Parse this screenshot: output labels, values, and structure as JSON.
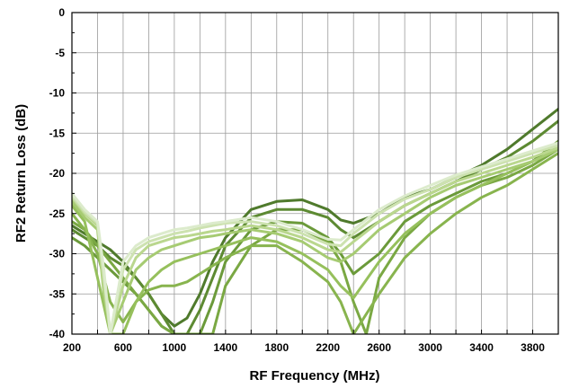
{
  "chart_data": {
    "type": "line",
    "title": "",
    "xlabel": "RF Frequency (MHz)",
    "ylabel": "RF2 Return Loss (dB)",
    "xlim": [
      200,
      4000
    ],
    "ylim": [
      -40,
      0
    ],
    "xticks": [
      200,
      600,
      1000,
      1400,
      1800,
      2200,
      2600,
      3000,
      3400,
      3800
    ],
    "yticks": [
      0,
      -5,
      -10,
      -15,
      -20,
      -25,
      -30,
      -35,
      -40
    ],
    "grid": true,
    "legend": "none",
    "colors": [
      "#4f7a2c",
      "#5d8a32",
      "#6b9a3a",
      "#7aa843",
      "#88b44e",
      "#96c05c",
      "#a6cb72",
      "#bad78e",
      "#cde2b0",
      "#dcebcc"
    ],
    "series": [
      {
        "x": [
          200,
          300,
          400,
          500,
          600,
          700,
          800,
          900,
          1000,
          1100,
          1200,
          1300,
          1400,
          1600,
          1800,
          2000,
          2200,
          2300,
          2400,
          2600,
          2800,
          3000,
          3200,
          3400,
          3600,
          3800,
          4000
        ],
        "y": [
          -26.5,
          -27.5,
          -28.5,
          -29.5,
          -31,
          -33,
          -35,
          -37.5,
          -39,
          -38,
          -35,
          -31,
          -28,
          -24.5,
          -23.5,
          -23.3,
          -24.5,
          -25.8,
          -26.2,
          -25,
          -23,
          -22,
          -20.5,
          -19,
          -17,
          -14.5,
          -12
        ]
      },
      {
        "x": [
          200,
          300,
          400,
          500,
          600,
          700,
          800,
          900,
          1000,
          1100,
          1200,
          1300,
          1400,
          1600,
          1800,
          2000,
          2200,
          2300,
          2400,
          2600,
          2800,
          3000,
          3200,
          3400,
          3600,
          3800,
          4000
        ],
        "y": [
          -27,
          -28,
          -29,
          -30.5,
          -31.5,
          -33,
          -35,
          -37.5,
          -40,
          -40,
          -37,
          -33,
          -29,
          -25.5,
          -24.5,
          -24.5,
          -25.5,
          -27,
          -28,
          -26,
          -24,
          -22.5,
          -21,
          -19.5,
          -18,
          -16,
          -13.5
        ]
      },
      {
        "x": [
          200,
          300,
          400,
          500,
          600,
          700,
          800,
          900,
          1000,
          1100,
          1200,
          1300,
          1400,
          1600,
          1800,
          2000,
          2200,
          2300,
          2400,
          2600,
          2800,
          3000,
          3200,
          3400,
          3600,
          3800,
          4000
        ],
        "y": [
          -28,
          -29,
          -30.5,
          -32,
          -33.5,
          -35,
          -37,
          -39,
          -40,
          -40,
          -40,
          -36,
          -31,
          -27,
          -26,
          -26.2,
          -28,
          -30,
          -32.5,
          -30,
          -26,
          -24,
          -22.5,
          -21,
          -20,
          -18.5,
          -16
        ]
      },
      {
        "x": [
          200,
          300,
          400,
          500,
          600,
          700,
          800,
          900,
          1000,
          1100,
          1200,
          1300,
          1400,
          1600,
          1800,
          2000,
          2200,
          2300,
          2400,
          2500,
          2600,
          2800,
          3000,
          3200,
          3400,
          3600,
          3800,
          4000
        ],
        "y": [
          -26,
          -27,
          -29,
          -31,
          -33,
          -35,
          -37,
          -39,
          -40,
          -40,
          -40,
          -40,
          -34,
          -29,
          -27,
          -27,
          -28.5,
          -31,
          -36,
          -40,
          -33,
          -28,
          -25,
          -23,
          -21.5,
          -20.5,
          -19,
          -17
        ]
      },
      {
        "x": [
          200,
          300,
          400,
          500,
          600,
          700,
          800,
          900,
          1000,
          1100,
          1200,
          1300,
          1400,
          1600,
          1800,
          2000,
          2200,
          2300,
          2400,
          2600,
          2800,
          3000,
          3200,
          3400,
          3600,
          3800,
          4000
        ],
        "y": [
          -25,
          -27,
          -30,
          -36,
          -38.5,
          -36,
          -34.5,
          -34,
          -34,
          -33.5,
          -32.5,
          -31.5,
          -30.5,
          -29,
          -29,
          -31,
          -33.5,
          -36,
          -40,
          -35,
          -30.5,
          -27.5,
          -25,
          -23,
          -21.5,
          -19.5,
          -17.5
        ]
      },
      {
        "x": [
          200,
          300,
          400,
          500,
          600,
          700,
          800,
          900,
          1000,
          1100,
          1200,
          1300,
          1400,
          1600,
          1800,
          2000,
          2200,
          2300,
          2400,
          2600,
          2800,
          3000,
          3200,
          3400,
          3600,
          3800,
          4000
        ],
        "y": [
          -24,
          -26,
          -33,
          -40,
          -40,
          -36,
          -33.5,
          -32,
          -31,
          -30.5,
          -30,
          -29.5,
          -29,
          -28,
          -28.5,
          -30,
          -32,
          -34,
          -35.5,
          -31,
          -27.5,
          -25,
          -23,
          -21.5,
          -20,
          -18.5,
          -17
        ]
      },
      {
        "x": [
          200,
          300,
          400,
          450,
          500,
          600,
          700,
          800,
          900,
          1000,
          1100,
          1200,
          1300,
          1400,
          1600,
          1800,
          2000,
          2200,
          2300,
          2400,
          2600,
          2800,
          3000,
          3200,
          3400,
          3600,
          3800,
          4000
        ],
        "y": [
          -23.5,
          -25.5,
          -27,
          -35,
          -40,
          -36,
          -32,
          -30.5,
          -29.5,
          -29,
          -28.5,
          -28,
          -27.8,
          -27.5,
          -27,
          -27.5,
          -28.5,
          -30.5,
          -31,
          -30,
          -27,
          -25,
          -23,
          -21.5,
          -20.5,
          -19.5,
          -18.5,
          -17
        ]
      },
      {
        "x": [
          200,
          300,
          400,
          450,
          500,
          600,
          700,
          800,
          900,
          1000,
          1100,
          1200,
          1300,
          1400,
          1600,
          1800,
          2000,
          2200,
          2300,
          2400,
          2600,
          2800,
          3000,
          3200,
          3400,
          3600,
          3800,
          4000
        ],
        "y": [
          -23,
          -25,
          -26.5,
          -34,
          -40,
          -34,
          -30.5,
          -29,
          -28.5,
          -28,
          -27.8,
          -27.5,
          -27.2,
          -27,
          -26.5,
          -27,
          -28,
          -29.5,
          -29.8,
          -28.5,
          -26,
          -24,
          -22.5,
          -21,
          -20,
          -19,
          -18,
          -16.8
        ]
      },
      {
        "x": [
          200,
          300,
          400,
          450,
          500,
          600,
          700,
          800,
          900,
          1000,
          1100,
          1200,
          1300,
          1400,
          1600,
          1800,
          2000,
          2200,
          2300,
          2400,
          2600,
          2800,
          3000,
          3200,
          3400,
          3600,
          3800,
          4000
        ],
        "y": [
          -22.8,
          -24.8,
          -26.2,
          -33,
          -40,
          -32,
          -29.5,
          -28.5,
          -28,
          -27.5,
          -27.2,
          -26.8,
          -26.5,
          -26.2,
          -26,
          -26.5,
          -27.5,
          -28.8,
          -29,
          -27.5,
          -25,
          -23.2,
          -22,
          -20.5,
          -19.5,
          -18.5,
          -17.5,
          -16.5
        ]
      },
      {
        "x": [
          200,
          300,
          400,
          450,
          500,
          600,
          700,
          800,
          900,
          1000,
          1100,
          1200,
          1300,
          1400,
          1600,
          1800,
          2000,
          2200,
          2300,
          2400,
          2600,
          2800,
          3000,
          3200,
          3400,
          3600,
          3800,
          4000
        ],
        "y": [
          -22.5,
          -24.5,
          -26,
          -32,
          -40,
          -31,
          -29,
          -28,
          -27.5,
          -27,
          -26.8,
          -26.5,
          -26.2,
          -26,
          -25.5,
          -26,
          -27,
          -28.2,
          -28.3,
          -27,
          -24.5,
          -22.8,
          -21.5,
          -20.2,
          -19.2,
          -18.2,
          -17.2,
          -16.2
        ]
      }
    ]
  }
}
